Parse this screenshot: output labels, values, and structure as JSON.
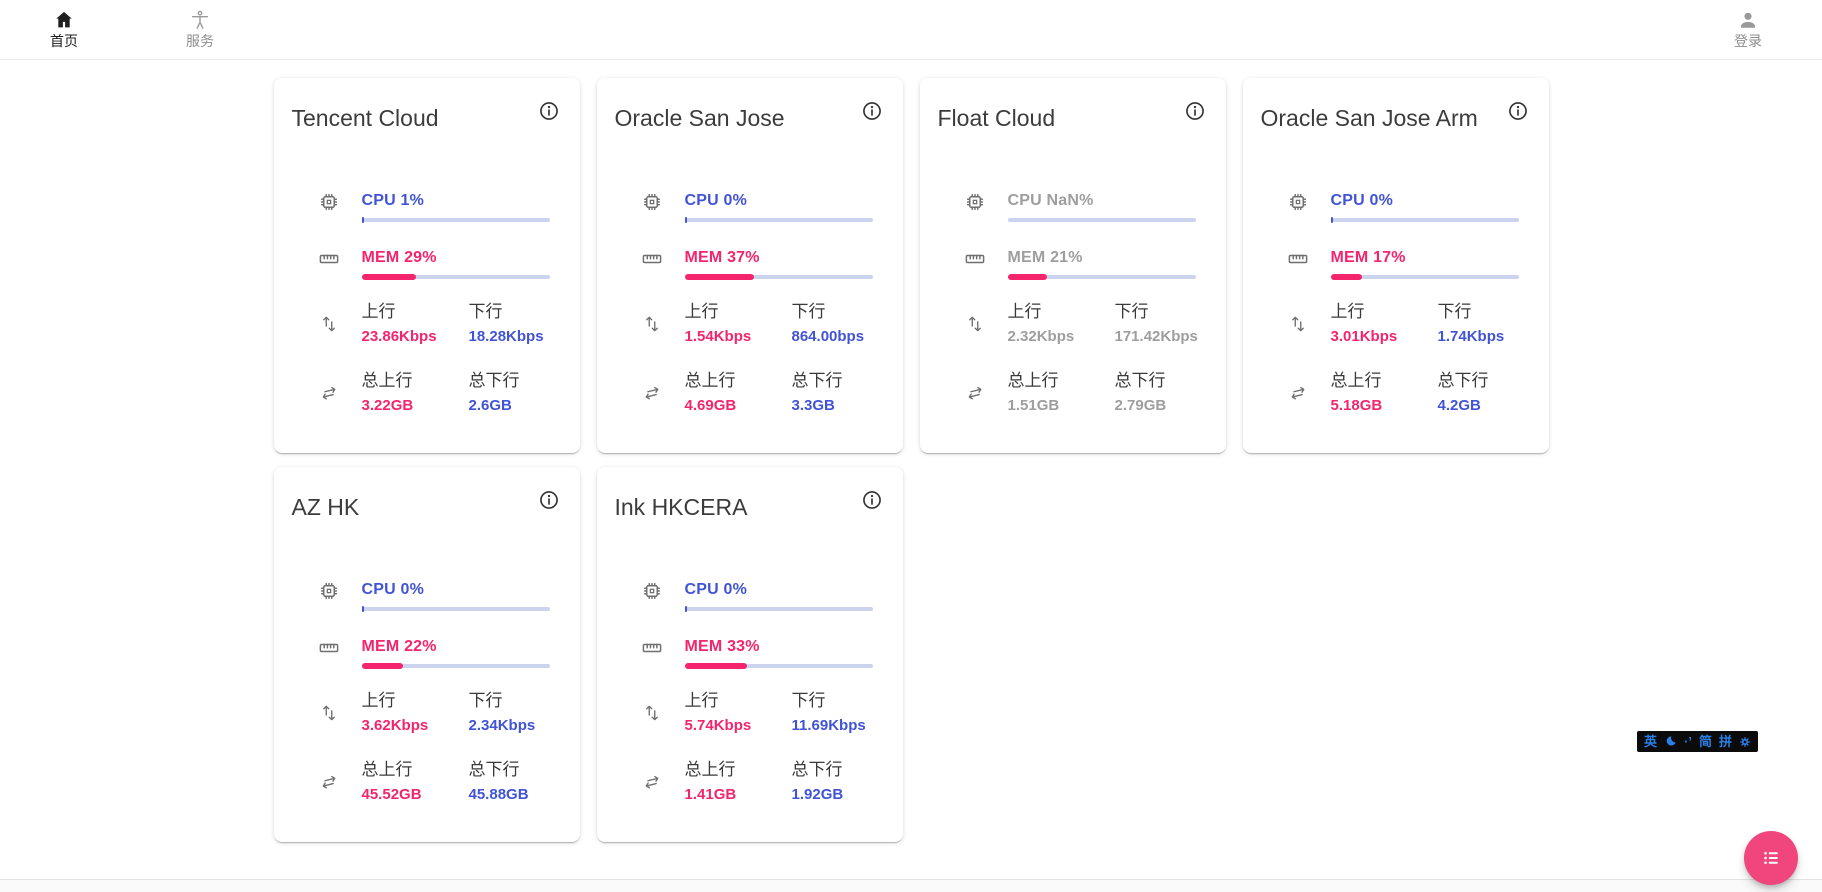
{
  "nav": {
    "home": {
      "label": "首页"
    },
    "services": {
      "label": "服务"
    },
    "login": {
      "label": "登录"
    }
  },
  "colors": {
    "accent_blue": "#4254d6",
    "accent_pink": "#f4256d",
    "bar_track": "#ccd3ee",
    "fab_pink": "#f0467d",
    "muted_gray": "#9e9e9e",
    "ime_blue": "#2b7fe8"
  },
  "servers": [
    {
      "name": "Tencent Cloud",
      "muted": false,
      "cpu_text": "CPU 1%",
      "cpu_pct": 1,
      "mem_text": "MEM 29%",
      "mem_pct": 29,
      "up_label": "上行",
      "up_value": "23.86Kbps",
      "down_label": "下行",
      "down_value": "18.28Kbps",
      "total_up_label": "总上行",
      "total_up_value": "3.22GB",
      "total_down_label": "总下行",
      "total_down_value": "2.6GB"
    },
    {
      "name": "Oracle San Jose",
      "muted": false,
      "cpu_text": "CPU 0%",
      "cpu_pct": 0,
      "mem_text": "MEM 37%",
      "mem_pct": 37,
      "up_label": "上行",
      "up_value": "1.54Kbps",
      "down_label": "下行",
      "down_value": "864.00bps",
      "total_up_label": "总上行",
      "total_up_value": "4.69GB",
      "total_down_label": "总下行",
      "total_down_value": "3.3GB"
    },
    {
      "name": "Float Cloud",
      "muted": true,
      "cpu_text": "CPU NaN%",
      "cpu_pct": null,
      "mem_text": "MEM 21%",
      "mem_pct": 21,
      "up_label": "上行",
      "up_value": "2.32Kbps",
      "down_label": "下行",
      "down_value": "171.42Kbps",
      "total_up_label": "总上行",
      "total_up_value": "1.51GB",
      "total_down_label": "总下行",
      "total_down_value": "2.79GB"
    },
    {
      "name": "Oracle San Jose Arm",
      "muted": false,
      "cpu_text": "CPU 0%",
      "cpu_pct": 0,
      "mem_text": "MEM 17%",
      "mem_pct": 17,
      "up_label": "上行",
      "up_value": "3.01Kbps",
      "down_label": "下行",
      "down_value": "1.74Kbps",
      "total_up_label": "总上行",
      "total_up_value": "5.18GB",
      "total_down_label": "总下行",
      "total_down_value": "4.2GB"
    },
    {
      "name": "AZ HK",
      "muted": false,
      "cpu_text": "CPU 0%",
      "cpu_pct": 0,
      "mem_text": "MEM 22%",
      "mem_pct": 22,
      "up_label": "上行",
      "up_value": "3.62Kbps",
      "down_label": "下行",
      "down_value": "2.34Kbps",
      "total_up_label": "总上行",
      "total_up_value": "45.52GB",
      "total_down_label": "总下行",
      "total_down_value": "45.88GB"
    },
    {
      "name": "Ink HKCERA",
      "muted": false,
      "cpu_text": "CPU 0%",
      "cpu_pct": 0,
      "mem_text": "MEM 33%",
      "mem_pct": 33,
      "up_label": "上行",
      "up_value": "5.74Kbps",
      "down_label": "下行",
      "down_value": "11.69Kbps",
      "total_up_label": "总上行",
      "total_up_value": "1.41GB",
      "total_down_label": "总下行",
      "total_down_value": "1.92GB"
    }
  ],
  "ime": {
    "lang": "英",
    "punct": "·’",
    "simplified": "简",
    "pinyin": "拼"
  }
}
